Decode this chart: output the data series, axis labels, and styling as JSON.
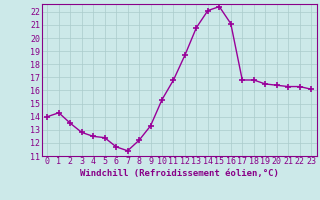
{
  "x": [
    0,
    1,
    2,
    3,
    4,
    5,
    6,
    7,
    8,
    9,
    10,
    11,
    12,
    13,
    14,
    15,
    16,
    17,
    18,
    19,
    20,
    21,
    22,
    23
  ],
  "y": [
    14.0,
    14.3,
    13.5,
    12.8,
    12.5,
    12.4,
    11.7,
    11.4,
    12.2,
    13.3,
    15.3,
    16.8,
    18.7,
    20.8,
    22.1,
    22.4,
    21.1,
    16.8,
    16.8,
    16.5,
    16.4,
    16.3,
    16.3,
    16.1
  ],
  "color": "#990099",
  "bg_color": "#cce9e9",
  "grid_color": "#aacccc",
  "xlabel": "Windchill (Refroidissement éolien,°C)",
  "xlim": [
    -0.5,
    23.5
  ],
  "ylim": [
    11,
    22.6
  ],
  "yticks": [
    11,
    12,
    13,
    14,
    15,
    16,
    17,
    18,
    19,
    20,
    21,
    22
  ],
  "xticks": [
    0,
    1,
    2,
    3,
    4,
    5,
    6,
    7,
    8,
    9,
    10,
    11,
    12,
    13,
    14,
    15,
    16,
    17,
    18,
    19,
    20,
    21,
    22,
    23
  ],
  "marker": "+",
  "linewidth": 1.0,
  "markersize": 4,
  "markeredgewidth": 1.2,
  "font_color": "#880088",
  "tick_fontsize": 6.0,
  "xlabel_fontsize": 6.5
}
